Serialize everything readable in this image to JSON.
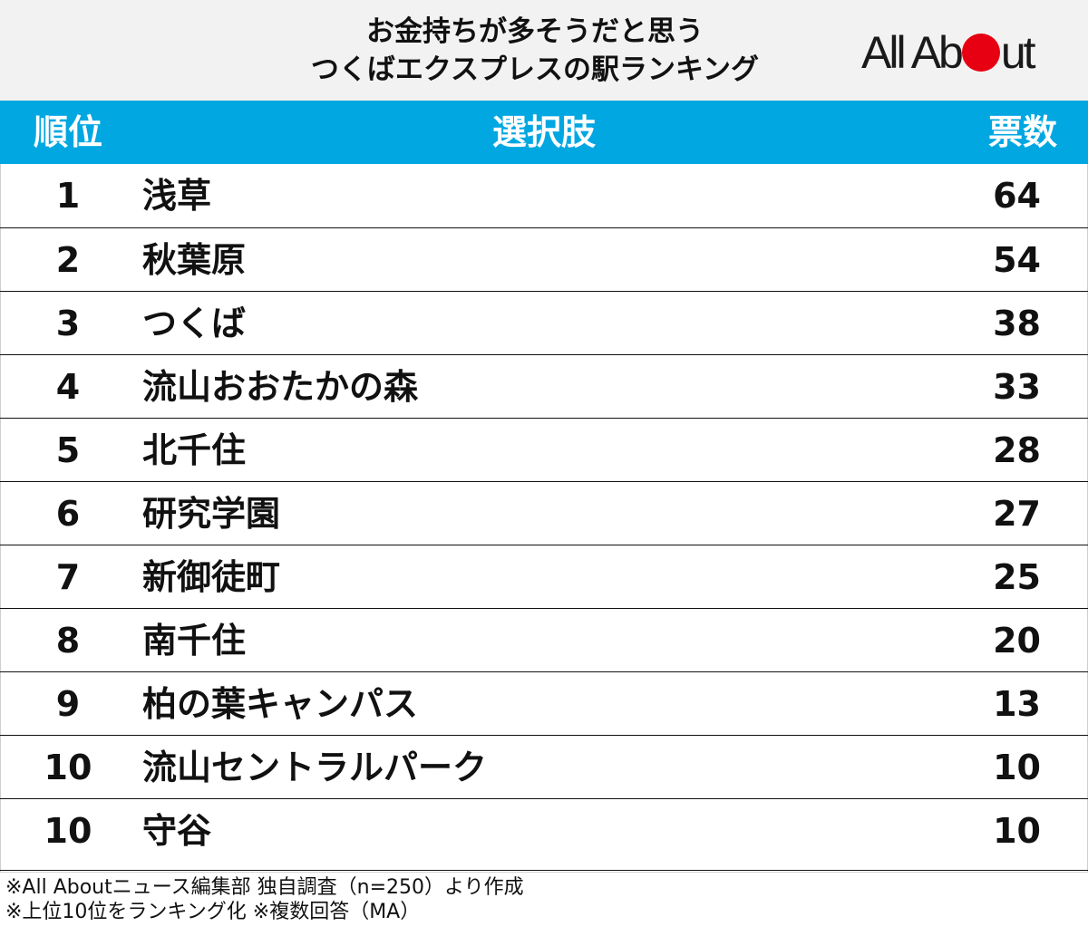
{
  "title": {
    "line1": "お金持ちが多そうだと思う",
    "line2": "つくばエクスプレスの駅ランキング"
  },
  "logo": {
    "text_before": "All Ab",
    "text_after": "ut",
    "dot_color": "#e60012"
  },
  "colors": {
    "header_bg": "#00a7e1",
    "title_bg": "#f2f2f2"
  },
  "chart_data": {
    "type": "table",
    "title": "お金持ちが多そうだと思う つくばエクスプレスの駅ランキング",
    "columns": [
      "順位",
      "選択肢",
      "票数"
    ],
    "rows": [
      {
        "rank": "1",
        "choice": "浅草",
        "votes": 64
      },
      {
        "rank": "2",
        "choice": "秋葉原",
        "votes": 54
      },
      {
        "rank": "3",
        "choice": "つくば",
        "votes": 38
      },
      {
        "rank": "4",
        "choice": "流山おおたかの森",
        "votes": 33
      },
      {
        "rank": "5",
        "choice": "北千住",
        "votes": 28
      },
      {
        "rank": "6",
        "choice": "研究学園",
        "votes": 27
      },
      {
        "rank": "7",
        "choice": "新御徒町",
        "votes": 25
      },
      {
        "rank": "8",
        "choice": "南千住",
        "votes": 20
      },
      {
        "rank": "9",
        "choice": "柏の葉キャンパス",
        "votes": 13
      },
      {
        "rank": "10",
        "choice": "流山セントラルパーク",
        "votes": 10
      },
      {
        "rank": "10",
        "choice": "守谷",
        "votes": 10
      }
    ]
  },
  "notes": [
    "※All Aboutニュース編集部 独自調査（n=250）より作成",
    "※上位10位をランキング化 ※複数回答（MA）"
  ]
}
